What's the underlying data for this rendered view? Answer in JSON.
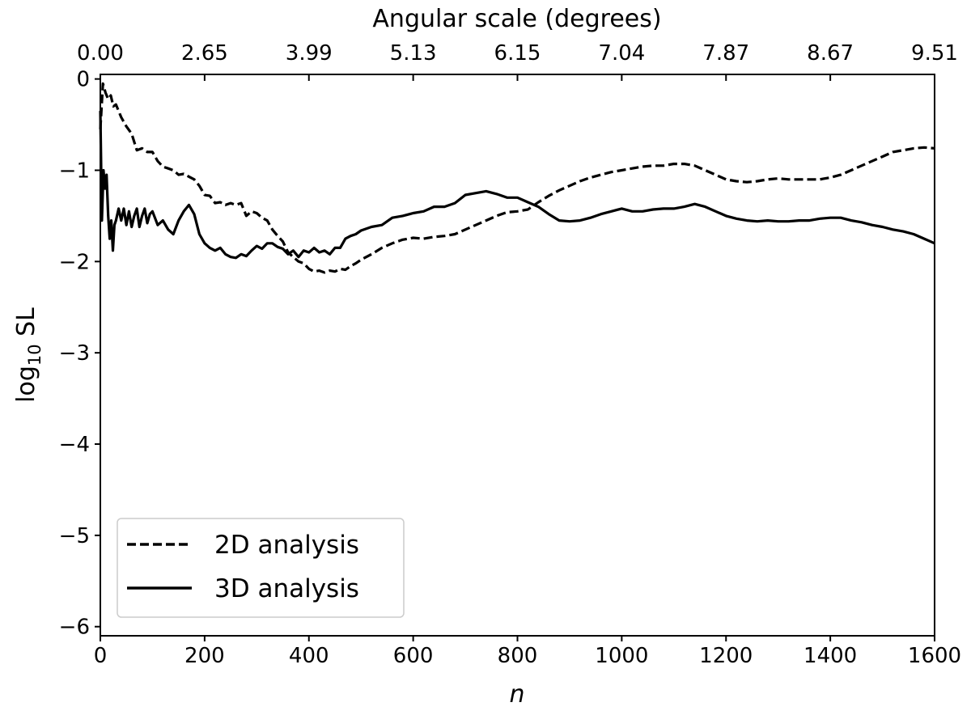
{
  "chart_data": {
    "type": "line",
    "title": "",
    "xlabel": "n",
    "ylabel_main": "log",
    "ylabel_sub": "10",
    "ylabel_tail": " SL",
    "top_xlabel": "Angular scale (degrees)",
    "xlim": [
      0,
      1600
    ],
    "ylim": [
      -6.1,
      0.05
    ],
    "x_ticks": [
      0,
      200,
      400,
      600,
      800,
      1000,
      1200,
      1400,
      1600
    ],
    "x_tick_labels": [
      "0",
      "200",
      "400",
      "600",
      "800",
      "1000",
      "1200",
      "1400",
      "1600"
    ],
    "y_ticks": [
      0,
      -1,
      -2,
      -3,
      -4,
      -5,
      -6
    ],
    "y_tick_labels": [
      "0",
      "−1",
      "−2",
      "−3",
      "−4",
      "−5",
      "−6"
    ],
    "top_ticks": [
      0,
      200,
      400,
      600,
      800,
      1000,
      1200,
      1400,
      1600
    ],
    "top_tick_labels": [
      "0.00",
      "2.65",
      "3.99",
      "5.13",
      "6.15",
      "7.04",
      "7.87",
      "8.67",
      "9.51"
    ],
    "grid": false,
    "legend_position": "lower-left",
    "series": [
      {
        "name": "2D analysis",
        "style": "dashed",
        "color": "#000000",
        "x": [
          0,
          5,
          10,
          15,
          20,
          25,
          30,
          40,
          50,
          60,
          70,
          80,
          90,
          100,
          110,
          120,
          130,
          140,
          150,
          160,
          170,
          180,
          190,
          200,
          210,
          220,
          230,
          240,
          250,
          260,
          270,
          280,
          290,
          300,
          310,
          320,
          330,
          340,
          350,
          360,
          370,
          380,
          390,
          400,
          410,
          420,
          430,
          440,
          450,
          460,
          470,
          480,
          490,
          500,
          520,
          540,
          560,
          580,
          600,
          620,
          640,
          660,
          680,
          700,
          720,
          740,
          760,
          780,
          800,
          820,
          840,
          860,
          880,
          900,
          920,
          940,
          960,
          980,
          1000,
          1020,
          1040,
          1060,
          1080,
          1100,
          1120,
          1140,
          1160,
          1180,
          1200,
          1220,
          1240,
          1260,
          1280,
          1300,
          1320,
          1340,
          1360,
          1380,
          1400,
          1420,
          1440,
          1460,
          1480,
          1500,
          1520,
          1540,
          1560,
          1580,
          1600
        ],
        "y": [
          -0.55,
          -0.05,
          -0.15,
          -0.22,
          -0.18,
          -0.3,
          -0.28,
          -0.42,
          -0.52,
          -0.6,
          -0.78,
          -0.76,
          -0.8,
          -0.8,
          -0.9,
          -0.96,
          -0.98,
          -1.0,
          -1.05,
          -1.04,
          -1.07,
          -1.1,
          -1.17,
          -1.27,
          -1.28,
          -1.36,
          -1.35,
          -1.38,
          -1.36,
          -1.38,
          -1.36,
          -1.5,
          -1.45,
          -1.47,
          -1.52,
          -1.55,
          -1.65,
          -1.72,
          -1.78,
          -1.9,
          -1.95,
          -2.0,
          -2.02,
          -2.08,
          -2.11,
          -2.1,
          -2.12,
          -2.1,
          -2.11,
          -2.08,
          -2.09,
          -2.05,
          -2.02,
          -1.98,
          -1.92,
          -1.85,
          -1.8,
          -1.76,
          -1.74,
          -1.75,
          -1.73,
          -1.72,
          -1.7,
          -1.65,
          -1.6,
          -1.55,
          -1.5,
          -1.46,
          -1.45,
          -1.43,
          -1.35,
          -1.28,
          -1.22,
          -1.17,
          -1.12,
          -1.08,
          -1.05,
          -1.02,
          -1.0,
          -0.98,
          -0.96,
          -0.95,
          -0.95,
          -0.93,
          -0.93,
          -0.95,
          -1.0,
          -1.05,
          -1.1,
          -1.12,
          -1.13,
          -1.12,
          -1.1,
          -1.09,
          -1.1,
          -1.1,
          -1.1,
          -1.1,
          -1.08,
          -1.05,
          -1.0,
          -0.95,
          -0.9,
          -0.85,
          -0.8,
          -0.78,
          -0.76,
          -0.75,
          -0.76
        ]
      },
      {
        "name": "3D analysis",
        "style": "solid",
        "color": "#000000",
        "x": [
          0,
          3,
          6,
          9,
          12,
          15,
          18,
          21,
          24,
          27,
          30,
          35,
          40,
          45,
          50,
          55,
          60,
          65,
          70,
          75,
          80,
          85,
          90,
          95,
          100,
          110,
          120,
          130,
          140,
          150,
          160,
          170,
          180,
          190,
          200,
          210,
          220,
          230,
          240,
          250,
          260,
          270,
          280,
          290,
          300,
          310,
          320,
          330,
          340,
          350,
          360,
          370,
          380,
          390,
          400,
          410,
          420,
          430,
          440,
          450,
          460,
          470,
          480,
          490,
          500,
          520,
          540,
          560,
          580,
          600,
          620,
          640,
          660,
          680,
          700,
          720,
          740,
          760,
          780,
          800,
          820,
          840,
          860,
          880,
          900,
          920,
          940,
          960,
          980,
          1000,
          1020,
          1040,
          1060,
          1080,
          1100,
          1120,
          1140,
          1160,
          1180,
          1200,
          1220,
          1240,
          1260,
          1280,
          1300,
          1320,
          1340,
          1360,
          1380,
          1400,
          1420,
          1440,
          1460,
          1480,
          1500,
          1520,
          1540,
          1560,
          1580,
          1600
        ],
        "y": [
          -0.35,
          -1.55,
          -1.0,
          -1.2,
          -1.05,
          -1.5,
          -1.75,
          -1.55,
          -1.88,
          -1.6,
          -1.55,
          -1.42,
          -1.55,
          -1.42,
          -1.6,
          -1.45,
          -1.62,
          -1.5,
          -1.42,
          -1.62,
          -1.5,
          -1.42,
          -1.58,
          -1.48,
          -1.45,
          -1.6,
          -1.55,
          -1.65,
          -1.7,
          -1.55,
          -1.45,
          -1.38,
          -1.48,
          -1.7,
          -1.8,
          -1.85,
          -1.88,
          -1.85,
          -1.92,
          -1.95,
          -1.96,
          -1.92,
          -1.94,
          -1.88,
          -1.83,
          -1.86,
          -1.8,
          -1.8,
          -1.84,
          -1.86,
          -1.92,
          -1.88,
          -1.95,
          -1.88,
          -1.9,
          -1.85,
          -1.9,
          -1.88,
          -1.92,
          -1.85,
          -1.85,
          -1.75,
          -1.72,
          -1.7,
          -1.66,
          -1.62,
          -1.6,
          -1.52,
          -1.5,
          -1.47,
          -1.45,
          -1.4,
          -1.4,
          -1.36,
          -1.27,
          -1.25,
          -1.23,
          -1.26,
          -1.3,
          -1.3,
          -1.35,
          -1.4,
          -1.48,
          -1.55,
          -1.56,
          -1.55,
          -1.52,
          -1.48,
          -1.45,
          -1.42,
          -1.45,
          -1.45,
          -1.43,
          -1.42,
          -1.42,
          -1.4,
          -1.37,
          -1.4,
          -1.45,
          -1.5,
          -1.53,
          -1.55,
          -1.56,
          -1.55,
          -1.56,
          -1.56,
          -1.55,
          -1.55,
          -1.53,
          -1.52,
          -1.52,
          -1.55,
          -1.57,
          -1.6,
          -1.62,
          -1.65,
          -1.67,
          -1.7,
          -1.75,
          -1.8
        ]
      }
    ]
  }
}
